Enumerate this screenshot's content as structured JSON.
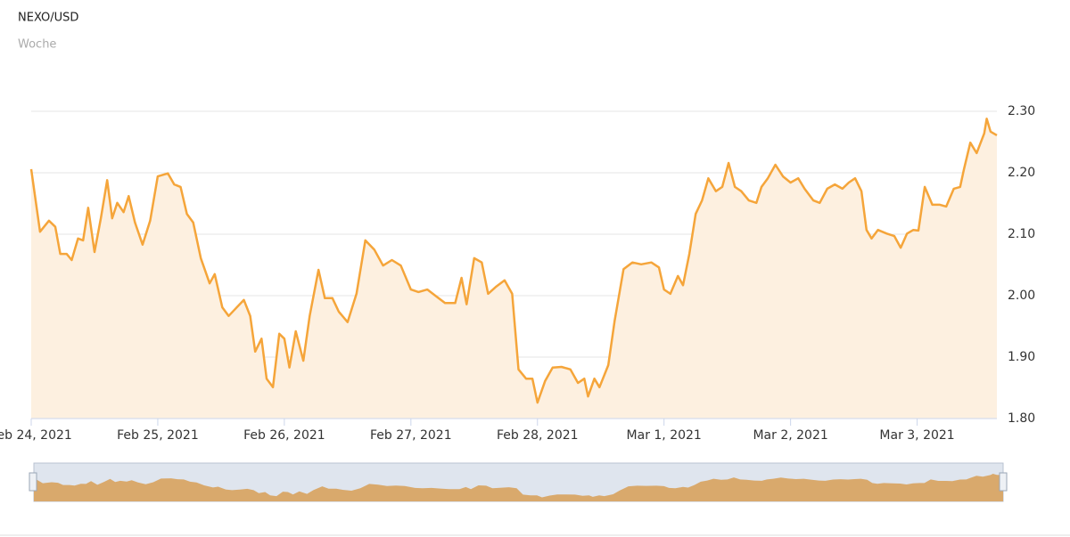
{
  "chart_data": {
    "type": "area",
    "title": "NEXO/USD",
    "subtitle": "Woche",
    "color": "#f5a53a",
    "fill": "#fdf0e0",
    "grid": true,
    "xlim": [
      0,
      7.63
    ],
    "xticks": [
      {
        "value": 0,
        "label": "Feb 24, 2021"
      },
      {
        "value": 1,
        "label": "Feb 25, 2021"
      },
      {
        "value": 2,
        "label": "Feb 26, 2021"
      },
      {
        "value": 3,
        "label": "Feb 27, 2021"
      },
      {
        "value": 4,
        "label": "Feb 28, 2021"
      },
      {
        "value": 5,
        "label": "Mar 1, 2021"
      },
      {
        "value": 6,
        "label": "Mar 2, 2021"
      },
      {
        "value": 7,
        "label": "Mar 3, 2021"
      }
    ],
    "ylim": [
      1.8,
      2.3
    ],
    "yticks": [
      {
        "value": 1.8,
        "label": "1.80"
      },
      {
        "value": 1.9,
        "label": "1.90"
      },
      {
        "value": 2.0,
        "label": "2.00"
      },
      {
        "value": 2.1,
        "label": "2.10"
      },
      {
        "value": 2.2,
        "label": "2.20"
      },
      {
        "value": 2.3,
        "label": "2.30"
      }
    ],
    "x": [
      0,
      0.07,
      0.14,
      0.19,
      0.23,
      0.28,
      0.32,
      0.37,
      0.41,
      0.45,
      0.5,
      0.55,
      0.6,
      0.64,
      0.68,
      0.73,
      0.77,
      0.82,
      0.88,
      0.94,
      1,
      1.08,
      1.13,
      1.18,
      1.23,
      1.28,
      1.34,
      1.41,
      1.45,
      1.51,
      1.56,
      1.62,
      1.68,
      1.73,
      1.77,
      1.82,
      1.86,
      1.91,
      1.96,
      2,
      2.04,
      2.09,
      2.15,
      2.2,
      2.27,
      2.32,
      2.38,
      2.43,
      2.5,
      2.57,
      2.64,
      2.71,
      2.78,
      2.85,
      2.92,
      3,
      3.06,
      3.13,
      3.2,
      3.27,
      3.35,
      3.4,
      3.44,
      3.5,
      3.56,
      3.61,
      3.67,
      3.74,
      3.8,
      3.85,
      3.91,
      3.96,
      4,
      4.06,
      4.12,
      4.19,
      4.26,
      4.32,
      4.37,
      4.4,
      4.45,
      4.49,
      4.56,
      4.61,
      4.68,
      4.75,
      4.82,
      4.9,
      4.96,
      5,
      5.05,
      5.11,
      5.15,
      5.2,
      5.25,
      5.3,
      5.35,
      5.41,
      5.46,
      5.51,
      5.56,
      5.61,
      5.67,
      5.73,
      5.77,
      5.82,
      5.88,
      5.94,
      6,
      6.06,
      6.11,
      6.18,
      6.23,
      6.29,
      6.35,
      6.41,
      6.46,
      6.51,
      6.56,
      6.6,
      6.64,
      6.69,
      6.76,
      6.82,
      6.87,
      6.92,
      6.97,
      7.01,
      7.06,
      7.12,
      7.18,
      7.23,
      7.29,
      7.34,
      7.37,
      7.42,
      7.47,
      7.53,
      7.55,
      7.58,
      7.63
    ],
    "values": [
      2.206,
      2.104,
      2.122,
      2.112,
      2.068,
      2.068,
      2.058,
      2.093,
      2.09,
      2.143,
      2.071,
      2.126,
      2.188,
      2.126,
      2.151,
      2.136,
      2.162,
      2.119,
      2.083,
      2.122,
      2.194,
      2.199,
      2.181,
      2.177,
      2.133,
      2.119,
      2.061,
      2.02,
      2.035,
      1.981,
      1.967,
      1.98,
      1.993,
      1.967,
      1.909,
      1.93,
      1.865,
      1.851,
      1.938,
      1.93,
      1.883,
      1.942,
      1.894,
      1.967,
      2.042,
      1.996,
      1.996,
      1.974,
      1.957,
      2.003,
      2.09,
      2.075,
      2.049,
      2.058,
      2.049,
      2.01,
      2.006,
      2.01,
      1.999,
      1.988,
      1.988,
      2.029,
      1.986,
      2.061,
      2.054,
      2.003,
      2.014,
      2.025,
      2.003,
      1.88,
      1.865,
      1.865,
      1.826,
      1.861,
      1.883,
      1.884,
      1.88,
      1.858,
      1.865,
      1.836,
      1.865,
      1.851,
      1.887,
      1.959,
      2.043,
      2.054,
      2.051,
      2.054,
      2.046,
      2.01,
      2.003,
      2.032,
      2.017,
      2.068,
      2.133,
      2.155,
      2.191,
      2.17,
      2.177,
      2.216,
      2.177,
      2.17,
      2.155,
      2.151,
      2.177,
      2.191,
      2.213,
      2.194,
      2.184,
      2.191,
      2.174,
      2.155,
      2.151,
      2.174,
      2.181,
      2.174,
      2.184,
      2.191,
      2.17,
      2.107,
      2.093,
      2.107,
      2.101,
      2.097,
      2.078,
      2.101,
      2.107,
      2.106,
      2.177,
      2.148,
      2.148,
      2.145,
      2.174,
      2.177,
      2.206,
      2.249,
      2.232,
      2.264,
      2.288,
      2.267,
      2.261
    ],
    "navigator_color": "#d9a96c"
  }
}
